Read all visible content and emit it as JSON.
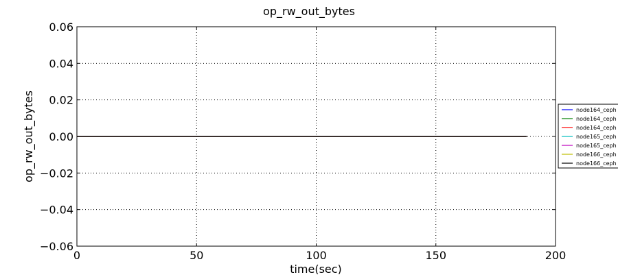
{
  "chart_data": {
    "type": "line",
    "title": "op_rw_out_bytes",
    "xlabel": "time(sec)",
    "ylabel": "op_rw_out_bytes",
    "xlim": [
      0,
      200
    ],
    "ylim": [
      -0.06,
      0.06
    ],
    "x_ticks": [
      0,
      50,
      100,
      150,
      200
    ],
    "y_ticks": [
      0.06,
      0.04,
      0.02,
      0.0,
      -0.02,
      -0.04,
      -0.06
    ],
    "x_tick_labels": [
      "0",
      "50",
      "100",
      "150",
      "200"
    ],
    "y_tick_labels": [
      "0.06",
      "0.04",
      "0.02",
      "0.00",
      "−0.02",
      "−0.04",
      "−0.06"
    ],
    "grid": true,
    "legend_position": "right-outside",
    "series": [
      {
        "name": "node164_ceph",
        "color": "#0000ff",
        "x": [
          0,
          188
        ],
        "values": [
          0,
          0
        ]
      },
      {
        "name": "node164_ceph",
        "color": "#008000",
        "x": [
          0,
          188
        ],
        "values": [
          0,
          0
        ]
      },
      {
        "name": "node164_ceph",
        "color": "#ff0000",
        "x": [
          0,
          188
        ],
        "values": [
          0,
          0
        ]
      },
      {
        "name": "node165_ceph",
        "color": "#00bfbf",
        "x": [
          0,
          188
        ],
        "values": [
          0,
          0
        ]
      },
      {
        "name": "node165_ceph",
        "color": "#bf00bf",
        "x": [
          0,
          188
        ],
        "values": [
          0,
          0
        ]
      },
      {
        "name": "node166_ceph",
        "color": "#bfbf00",
        "x": [
          0,
          188
        ],
        "values": [
          0,
          0
        ]
      },
      {
        "name": "node166_ceph",
        "color": "#000000",
        "x": [
          0,
          188
        ],
        "values": [
          0,
          0
        ]
      }
    ]
  }
}
